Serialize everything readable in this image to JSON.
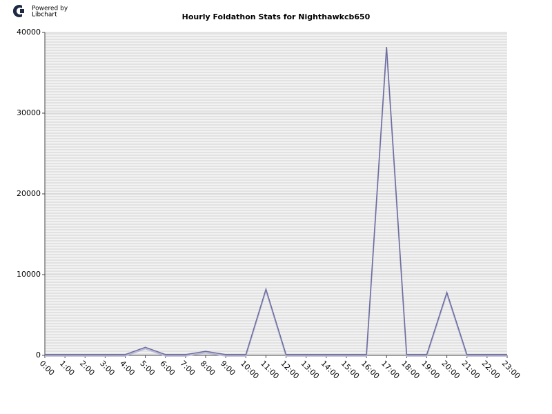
{
  "branding": {
    "line1": "Powered by",
    "line2": "Libchart"
  },
  "chart_data": {
    "type": "line",
    "title": "Hourly Foldathon Stats for Nighthawkcb650",
    "categories": [
      "0:00",
      "1:00",
      "2:00",
      "3:00",
      "4:00",
      "5:00",
      "6:00",
      "7:00",
      "8:00",
      "9:00",
      "10:00",
      "11:00",
      "12:00",
      "13:00",
      "14:00",
      "15:00",
      "16:00",
      "17:00",
      "18:00",
      "19:00",
      "20:00",
      "21:00",
      "22:00",
      "23:00"
    ],
    "values": [
      100,
      100,
      100,
      100,
      100,
      1000,
      100,
      100,
      500,
      100,
      100,
      8200,
      100,
      100,
      100,
      100,
      100,
      38200,
      100,
      100,
      7800,
      100,
      100,
      100
    ],
    "color": "#6d6d9e",
    "ylim": [
      0,
      40000
    ],
    "yticks": [
      0,
      10000,
      20000,
      30000,
      40000
    ],
    "grid": true
  }
}
